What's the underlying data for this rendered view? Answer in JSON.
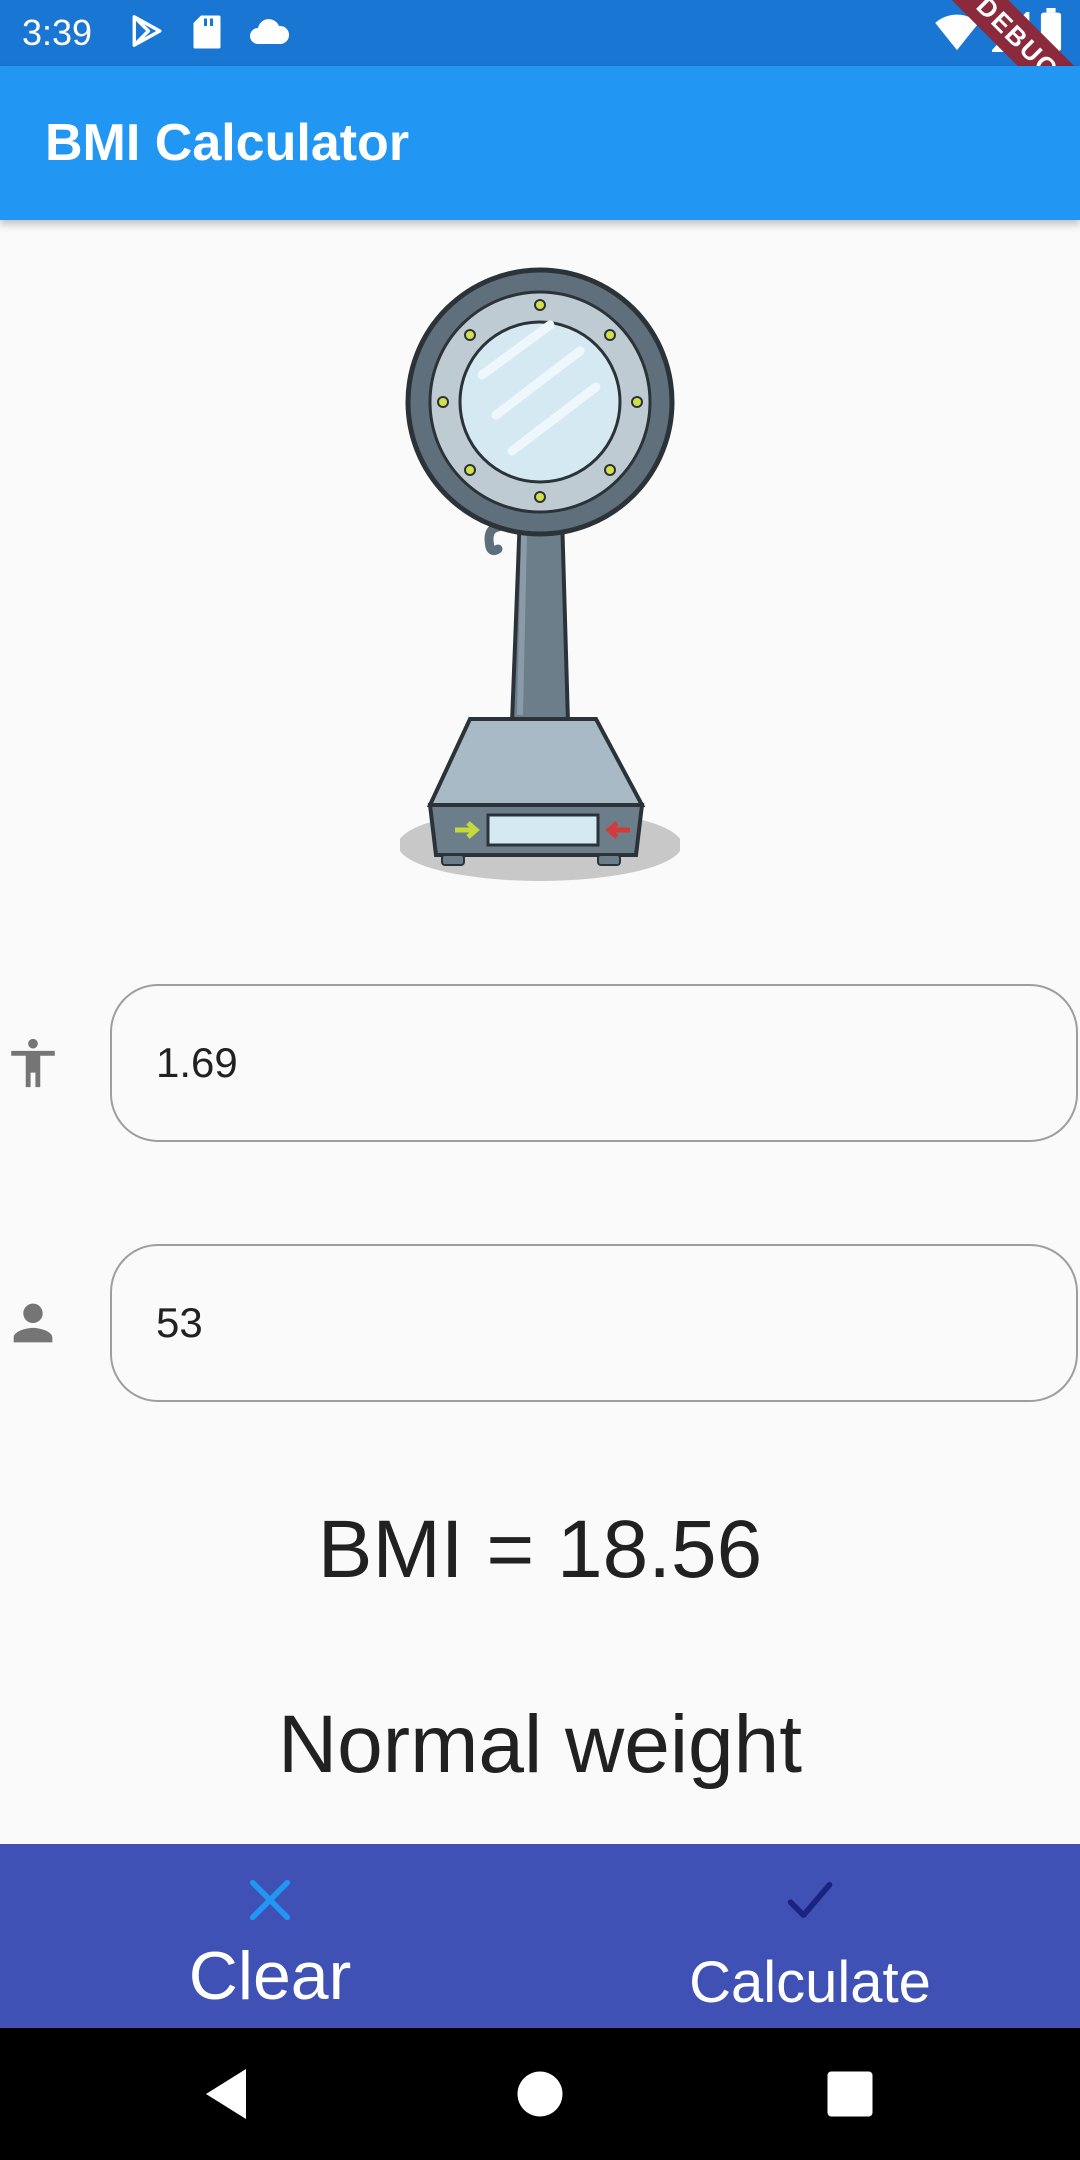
{
  "status_bar": {
    "time": "3:39",
    "debug_label": "DEBUG",
    "icons": [
      "play-store-icon",
      "sd-card-icon",
      "cloud-icon",
      "wifi-icon",
      "signal-icon",
      "battery-icon"
    ]
  },
  "app_bar": {
    "title": "BMI Calculator",
    "color": "#2196f3"
  },
  "illustration": {
    "icon": "weighing-scale-icon"
  },
  "height_field": {
    "icon": "accessibility-icon",
    "value": "1.69"
  },
  "weight_field": {
    "icon": "person-icon",
    "value": "53"
  },
  "result": {
    "bmi_text": "BMI = 18.56",
    "category": "Normal weight"
  },
  "actions": {
    "clear_label": "Clear",
    "calculate_label": "Calculate",
    "bar_color": "#3f51b5"
  },
  "navigation": {
    "icons": [
      "back-icon",
      "home-icon",
      "recents-icon"
    ]
  }
}
